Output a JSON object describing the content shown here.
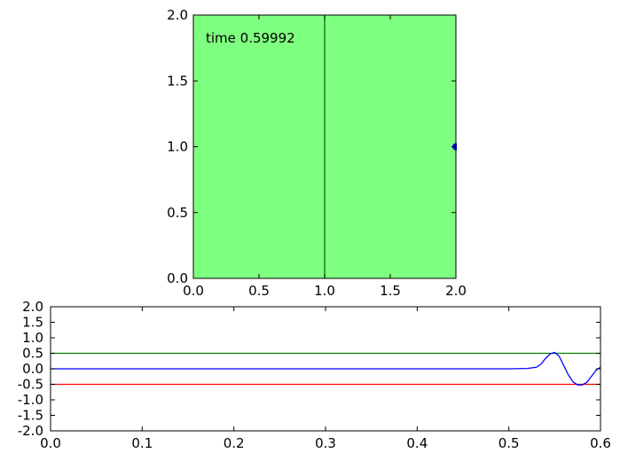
{
  "chart_data": [
    {
      "type": "scatter",
      "title": "",
      "xlabel": "",
      "ylabel": "",
      "xlim": [
        0.0,
        2.0
      ],
      "ylim": [
        0.0,
        2.0
      ],
      "background_color": "#7fff7f",
      "x_ticks": [
        "0.0",
        "0.5",
        "1.0",
        "1.5",
        "2.0"
      ],
      "y_ticks": [
        "0.0",
        "0.5",
        "1.0",
        "1.5",
        "2.0"
      ],
      "annotation": "time 0.59992",
      "vertical_line": {
        "x": 1.0,
        "color": "#006400"
      },
      "points": [
        {
          "x": 2.0,
          "y": 1.0,
          "color": "#0000ff"
        }
      ],
      "grid": false
    },
    {
      "type": "line",
      "title": "",
      "xlabel": "",
      "ylabel": "",
      "xlim": [
        0.0,
        0.6
      ],
      "ylim": [
        -2.0,
        2.0
      ],
      "x_ticks": [
        "0.0",
        "0.1",
        "0.2",
        "0.3",
        "0.4",
        "0.5",
        "0.6"
      ],
      "y_ticks": [
        "2.0",
        "1.5",
        "1.0",
        "0.5",
        "0.0",
        "-0.5",
        "-1.0",
        "-1.5",
        "-2.0"
      ],
      "grid": false,
      "series": [
        {
          "color": "#008000",
          "x": [
            0.0,
            0.6
          ],
          "y": [
            0.5,
            0.5
          ]
        },
        {
          "color": "#ff0000",
          "x": [
            0.0,
            0.6
          ],
          "y": [
            -0.5,
            -0.5
          ]
        },
        {
          "color": "#0000ff",
          "x": [
            0.0,
            0.5,
            0.52,
            0.53,
            0.535,
            0.54,
            0.545,
            0.55,
            0.555,
            0.56,
            0.565,
            0.57,
            0.575,
            0.58,
            0.585,
            0.59,
            0.595,
            0.6
          ],
          "y": [
            0.0,
            0.0,
            0.01,
            0.05,
            0.15,
            0.33,
            0.48,
            0.53,
            0.4,
            0.1,
            -0.2,
            -0.42,
            -0.52,
            -0.52,
            -0.44,
            -0.25,
            -0.05,
            0.05
          ]
        }
      ]
    }
  ]
}
